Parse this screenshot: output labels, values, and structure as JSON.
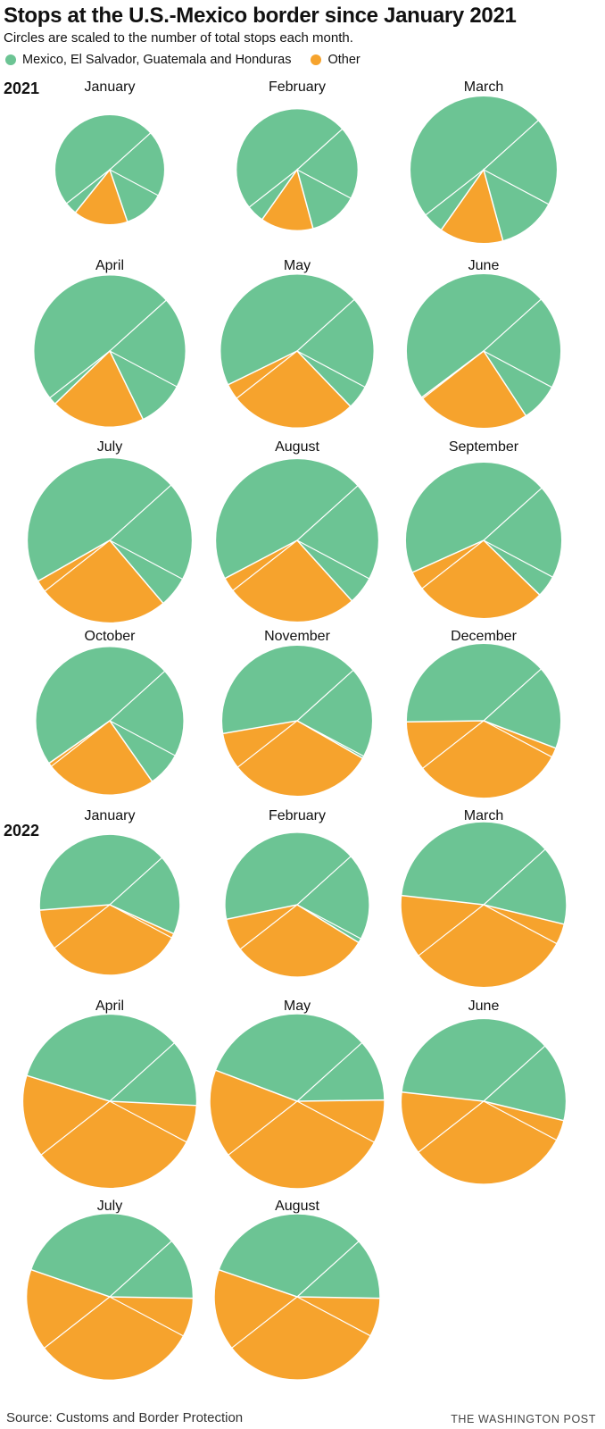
{
  "header": {
    "title": "Stops at the U.S.-Mexico border since January 2021",
    "subtitle": "Circles are scaled to the number of total stops each month."
  },
  "legend": [
    {
      "label": "Mexico, El Salvador, Guatemala and Honduras",
      "color": "#6cc494"
    },
    {
      "label": "Other",
      "color": "#f6a32d"
    }
  ],
  "years": {
    "first": "2021",
    "second": "2022"
  },
  "footer": {
    "source": "Source: Customs and Border Protection",
    "credit": "THE WASHINGTON POST"
  },
  "chart_data": {
    "type": "pie",
    "encoding": "circle area scaled to total stops per month",
    "colors": {
      "green": "#6cc494",
      "orange": "#f6a32d"
    },
    "months": [
      {
        "year": "2021",
        "label": "January",
        "other_share": 0.16,
        "relative_total": 0.44
      },
      {
        "year": "2021",
        "label": "February",
        "other_share": 0.14,
        "relative_total": 0.54
      },
      {
        "year": "2021",
        "label": "March",
        "other_share": 0.14,
        "relative_total": 0.79
      },
      {
        "year": "2021",
        "label": "April",
        "other_share": 0.2,
        "relative_total": 0.84
      },
      {
        "year": "2021",
        "label": "May",
        "other_share": 0.3,
        "relative_total": 0.86
      },
      {
        "year": "2021",
        "label": "June",
        "other_share": 0.24,
        "relative_total": 0.87
      },
      {
        "year": "2021",
        "label": "July",
        "other_share": 0.28,
        "relative_total": 0.99
      },
      {
        "year": "2021",
        "label": "August",
        "other_share": 0.29,
        "relative_total": 0.97
      },
      {
        "year": "2021",
        "label": "September",
        "other_share": 0.31,
        "relative_total": 0.89
      },
      {
        "year": "2021",
        "label": "October",
        "other_share": 0.25,
        "relative_total": 0.8
      },
      {
        "year": "2021",
        "label": "November",
        "other_share": 0.39,
        "relative_total": 0.83
      },
      {
        "year": "2021",
        "label": "December",
        "other_share": 0.44,
        "relative_total": 0.87
      },
      {
        "year": "2022",
        "label": "January",
        "other_share": 0.42,
        "relative_total": 0.72
      },
      {
        "year": "2022",
        "label": "February",
        "other_share": 0.38,
        "relative_total": 0.76
      },
      {
        "year": "2022",
        "label": "March",
        "other_share": 0.48,
        "relative_total": 1.0
      },
      {
        "year": "2022",
        "label": "April",
        "other_share": 0.54,
        "relative_total": 1.1
      },
      {
        "year": "2022",
        "label": "May",
        "other_share": 0.56,
        "relative_total": 1.11
      },
      {
        "year": "2022",
        "label": "June",
        "other_share": 0.48,
        "relative_total": 0.99
      },
      {
        "year": "2022",
        "label": "July",
        "other_share": 0.55,
        "relative_total": 1.01
      },
      {
        "year": "2022",
        "label": "August",
        "other_share": 0.55,
        "relative_total": 1.0
      }
    ]
  }
}
